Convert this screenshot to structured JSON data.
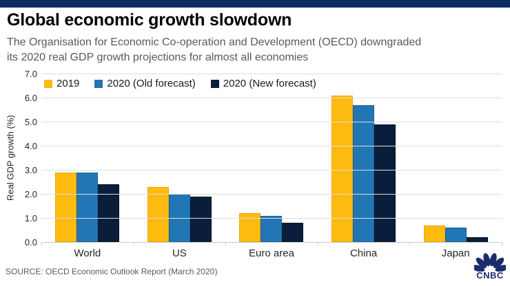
{
  "header": {
    "title": "Global economic growth slowdown",
    "subtitle_line1": "The Organisation for Economic Co-operation and Development (OECD) downgraded",
    "subtitle_line2": "its 2020 real GDP growth projections for almost all economies"
  },
  "chart_data": {
    "type": "bar",
    "title": "Global economic growth slowdown",
    "xlabel": "",
    "ylabel": "Real GDP growth (%)",
    "ylim": [
      0,
      7
    ],
    "ytick_step": 1,
    "ytick_decimals": 1,
    "grid": true,
    "legend_position": "top-left-inside",
    "categories": [
      "World",
      "US",
      "Euro area",
      "China",
      "Japan"
    ],
    "series": [
      {
        "name": "2019",
        "color": "#FDBB10",
        "border_color": "#EBA70A",
        "values": [
          2.9,
          2.3,
          1.2,
          6.1,
          0.7
        ]
      },
      {
        "name": "2020 (Old forecast)",
        "color": "#2176B5",
        "border_color": "#1A6099",
        "values": [
          2.9,
          2.0,
          1.1,
          5.7,
          0.6
        ]
      },
      {
        "name": "2020 (New forecast)",
        "color": "#0A1E3C",
        "border_color": "#081629",
        "values": [
          2.4,
          1.9,
          0.8,
          4.9,
          0.2
        ]
      }
    ]
  },
  "footer": {
    "source": "SOURCE: OECD Economic Outlook Report (March 2020)",
    "logo_text": "CNBC"
  },
  "colors": {
    "top_bar": "#0B2C5F",
    "logo_navy": "#1A2C6B",
    "gridline": "#DEDEDE",
    "axis_text": "#262626",
    "subtitle_text": "#595959"
  }
}
